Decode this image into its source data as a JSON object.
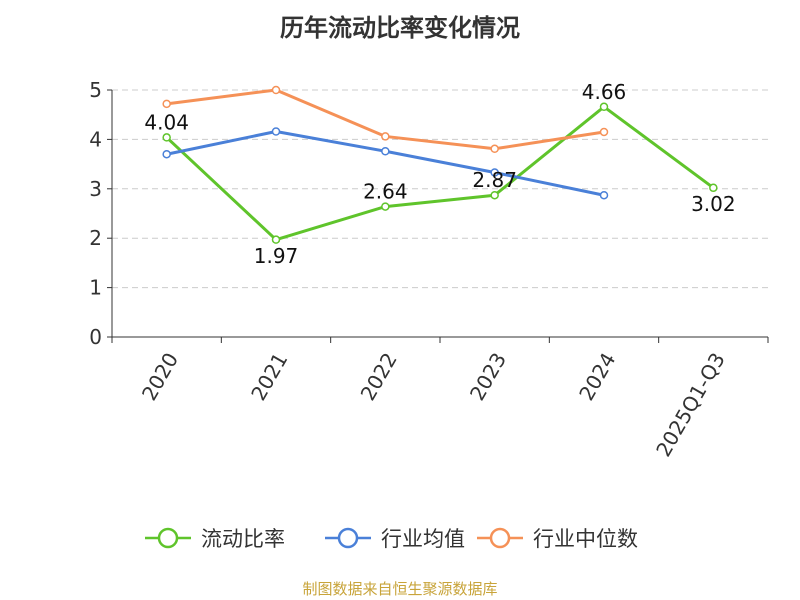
{
  "title": "历年流动比率变化情况",
  "source": "制图数据来自恒生聚源数据库",
  "chart_data": {
    "type": "line",
    "title": "历年流动比率变化情况",
    "categories": [
      "2020",
      "2021",
      "2022",
      "2023",
      "2024",
      "2025Q1-Q3"
    ],
    "ylim": [
      0,
      5
    ],
    "yticks": [
      0,
      1,
      2,
      3,
      4,
      5
    ],
    "grid": true,
    "legend_position": "bottom",
    "series": [
      {
        "name": "流动比率",
        "color": "#5fc42b",
        "values": [
          4.04,
          1.97,
          2.64,
          2.87,
          4.66,
          3.02
        ],
        "labels": [
          "4.04",
          "1.97",
          "2.64",
          "2.87",
          "4.66",
          "3.02"
        ]
      },
      {
        "name": "行业均值",
        "color": "#4a80d8",
        "values": [
          3.7,
          4.16,
          3.76,
          3.33,
          2.87,
          null
        ]
      },
      {
        "name": "行业中位数",
        "color": "#f59157",
        "values": [
          4.72,
          5.0,
          4.06,
          3.81,
          4.15,
          null
        ]
      }
    ]
  }
}
